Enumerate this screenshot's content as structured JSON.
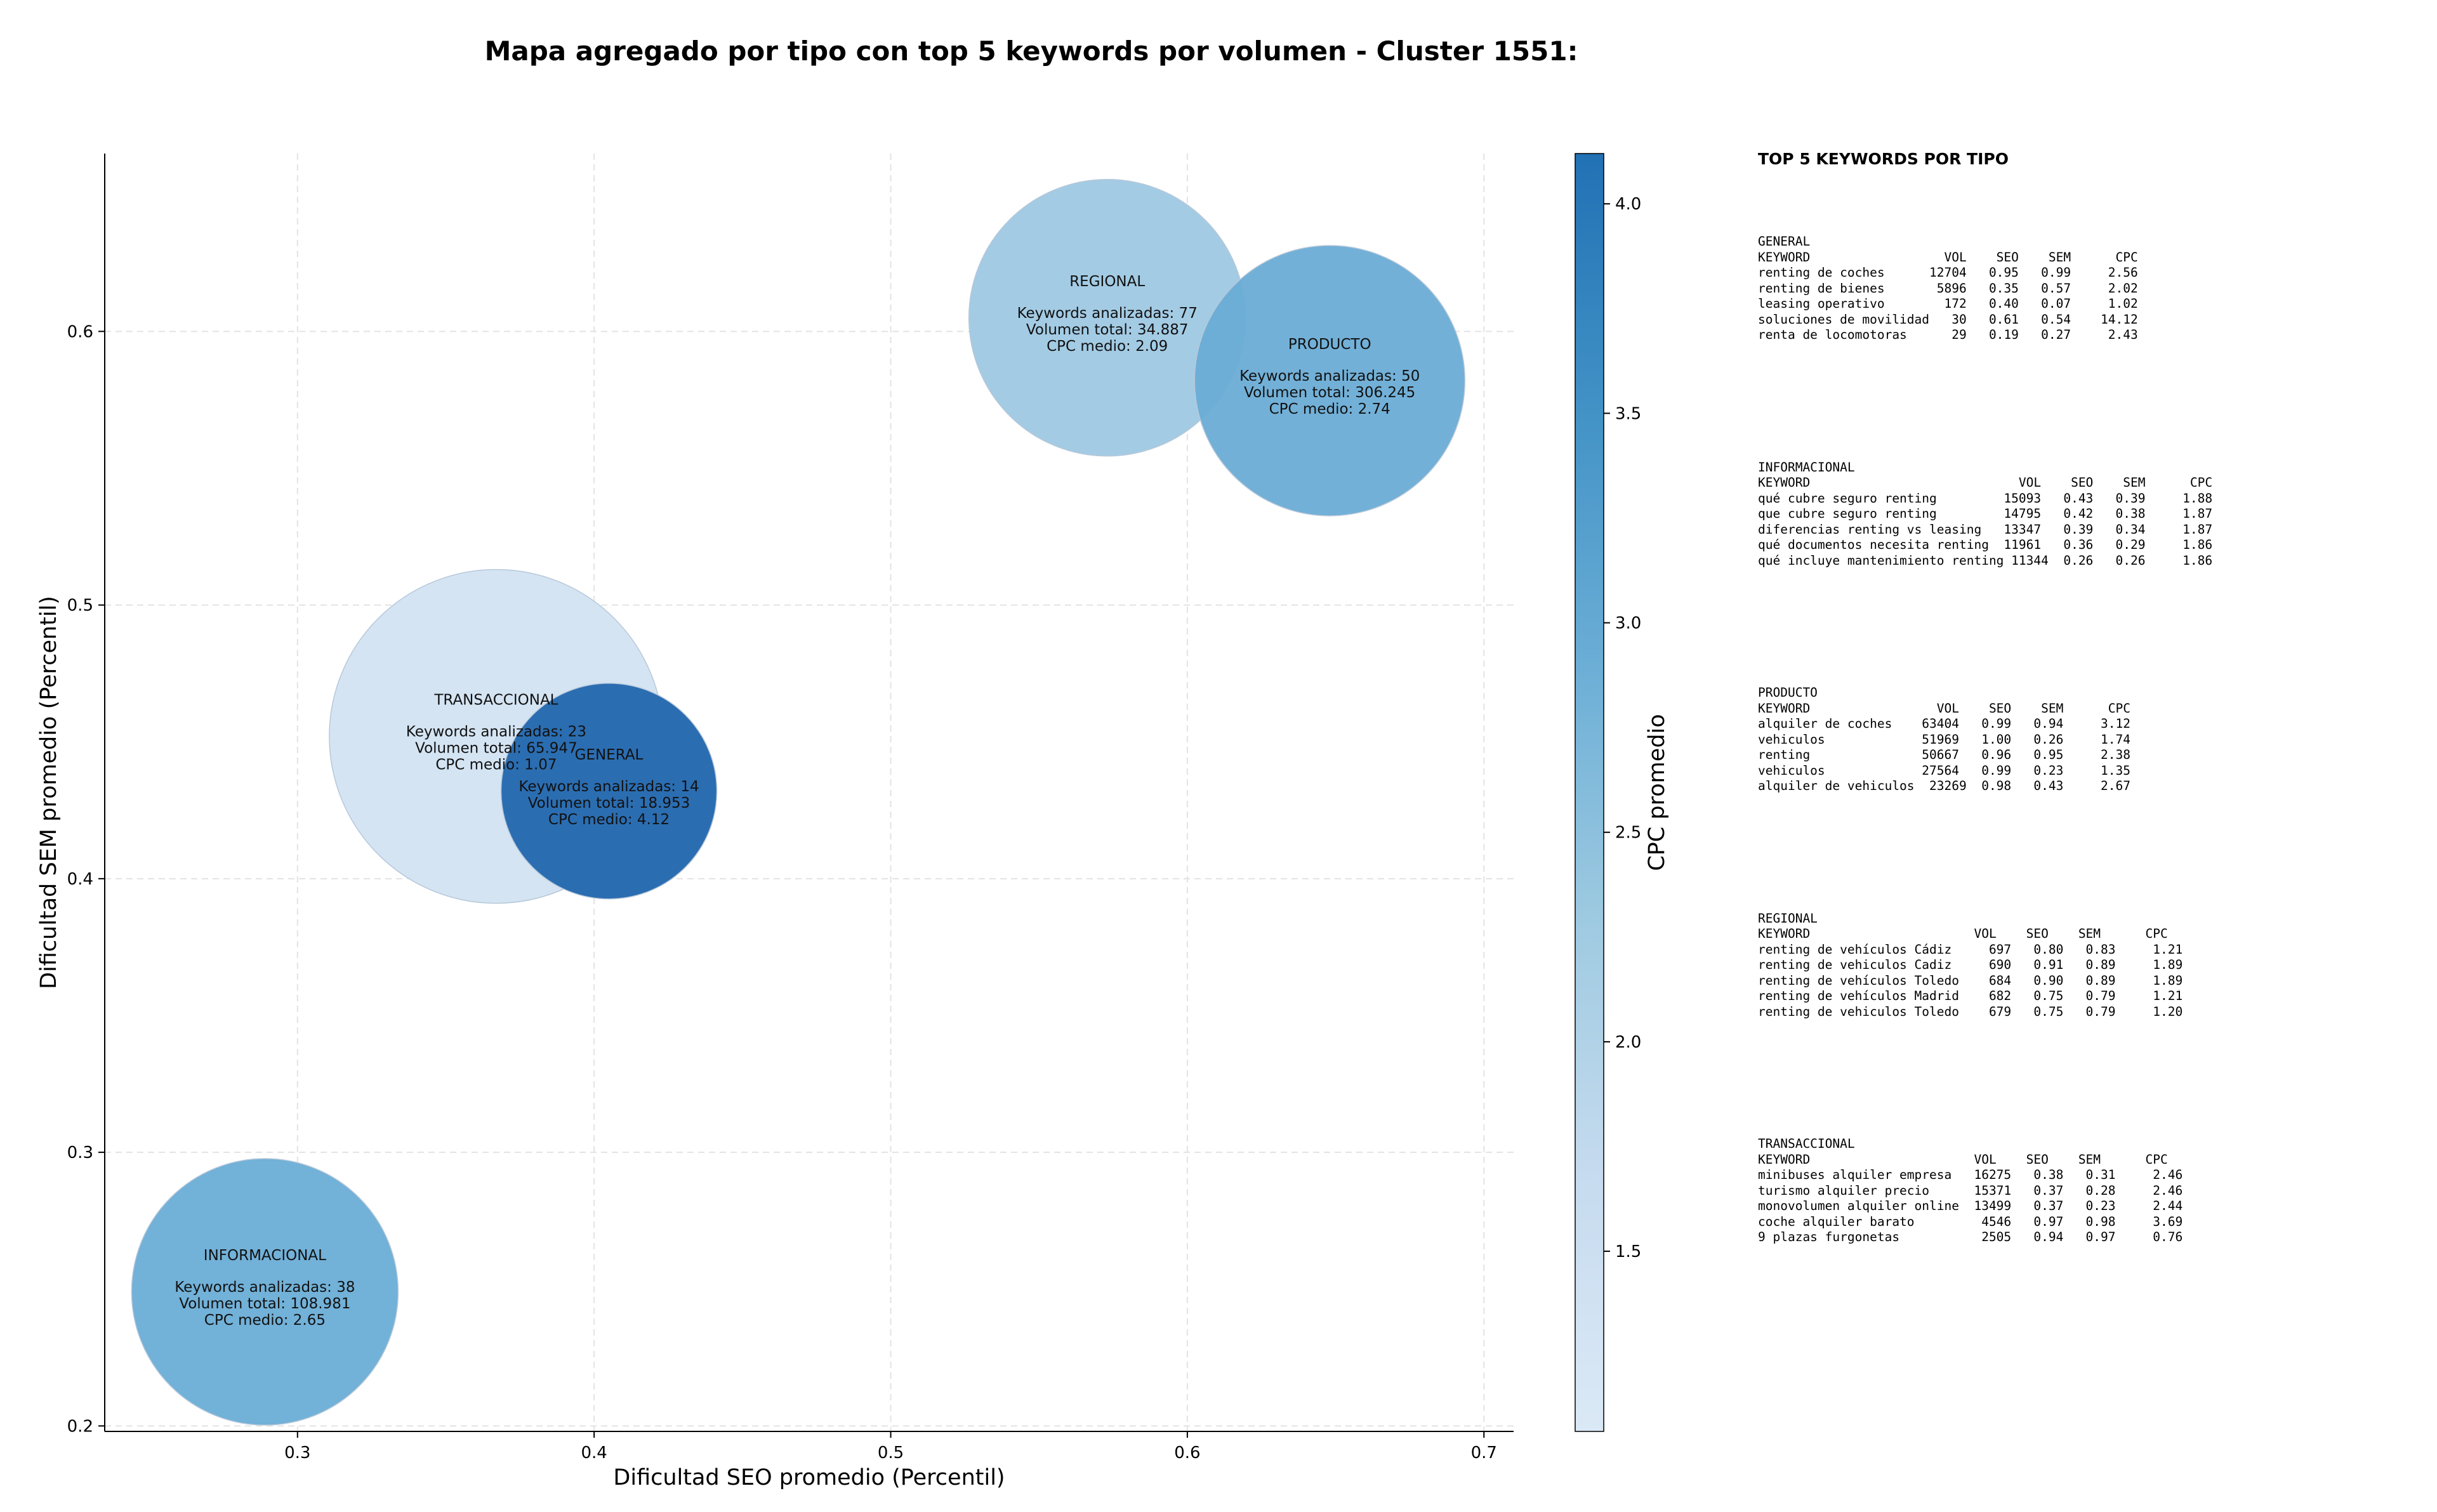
{
  "chart_data": {
    "type": "scatter",
    "title": "Mapa agregado por tipo con top 5 keywords por volumen - Cluster 1551:",
    "xlabel": "Dificultad SEO promedio (Percentil)",
    "ylabel": "Dificultad SEM promedio (Percentil)",
    "xlim": [
      0.235,
      0.71
    ],
    "ylim": [
      0.198,
      0.665
    ],
    "xticks": [
      0.3,
      0.4,
      0.5,
      0.6,
      0.7
    ],
    "yticks": [
      0.2,
      0.3,
      0.4,
      0.5,
      0.6
    ],
    "grid": true,
    "colorbar": {
      "label": "CPC promedio",
      "min": 1.07,
      "max": 4.12,
      "ticks": [
        1.5,
        2.0,
        2.5,
        3.0,
        3.5,
        4.0
      ],
      "colormap": [
        "#dbe9f6",
        "#c6dbef",
        "#9ecae1",
        "#6baed6",
        "#4292c6",
        "#2171b5"
      ]
    },
    "points": [
      {
        "name": "REGIONAL",
        "x": 0.573,
        "y": 0.605,
        "keywords_label": "Keywords analizadas: 77",
        "volume_label": "Volumen total: 34.887",
        "cpc_label": "CPC medio: 2.09",
        "keywords": 77,
        "volume": 34887,
        "cpc": 2.09,
        "color": "#a3cbe4",
        "alpha": 1.0
      },
      {
        "name": "PRODUCTO",
        "x": 0.648,
        "y": 0.582,
        "keywords_label": "Keywords analizadas: 50",
        "volume_label": "Volumen total: 306.245",
        "cpc_label": "CPC medio: 2.74",
        "keywords": 50,
        "volume": 306245,
        "cpc": 2.74,
        "color": "#6aacd5",
        "alpha": 0.95
      },
      {
        "name": "TRANSACCIONAL",
        "x": 0.367,
        "y": 0.452,
        "keywords_label": "Keywords analizadas: 23",
        "volume_label": "Volumen total: 65.947",
        "cpc_label": "CPC medio: 1.07",
        "keywords": 23,
        "volume": 65947,
        "cpc": 1.07,
        "color": "#d4e4f3",
        "alpha": 1.0
      },
      {
        "name": "GENERAL",
        "x": 0.405,
        "y": 0.432,
        "keywords_label": "Keywords analizadas: 14",
        "volume_label": "Volumen total: 18.953",
        "cpc_label": "CPC medio: 4.12",
        "keywords": 14,
        "volume": 18953,
        "cpc": 4.12,
        "color": "#2b6db1",
        "alpha": 1.0
      },
      {
        "name": "INFORMACIONAL",
        "x": 0.289,
        "y": 0.249,
        "keywords_label": "Keywords analizadas: 38",
        "volume_label": "Volumen total: 108.981",
        "cpc_label": "CPC medio: 2.65",
        "keywords": 38,
        "volume": 108981,
        "cpc": 2.65,
        "color": "#72b1d8",
        "alpha": 1.0
      }
    ]
  },
  "side_panel": {
    "title": "TOP 5 KEYWORDS POR TIPO",
    "sections": [
      {
        "name": "GENERAL",
        "text": "GENERAL\nKEYWORD                  VOL    SEO    SEM      CPC\nrenting de coches      12704   0.95   0.99     2.56\nrenting de bienes       5896   0.35   0.57     2.02\nleasing operativo        172   0.40   0.07     1.02\nsoluciones de movilidad   30   0.61   0.54    14.12\nrenta de locomotoras      29   0.19   0.27     2.43"
      },
      {
        "name": "INFORMACIONAL",
        "text": "INFORMACIONAL\nKEYWORD                            VOL    SEO    SEM      CPC\nqué cubre seguro renting         15093   0.43   0.39     1.88\nque cubre seguro renting         14795   0.42   0.38     1.87\ndiferencias renting vs leasing   13347   0.39   0.34     1.87\nqué documentos necesita renting  11961   0.36   0.29     1.86\nqué incluye mantenimiento renting 11344  0.26   0.26     1.86"
      },
      {
        "name": "PRODUCTO",
        "text": "PRODUCTO\nKEYWORD                 VOL    SEO    SEM      CPC\nalquiler de coches    63404   0.99   0.94     3.12\nvehiculos             51969   1.00   0.26     1.74\nrenting               50667   0.96   0.95     2.38\nvehiculos             27564   0.99   0.23     1.35\nalquiler de vehiculos  23269  0.98   0.43     2.67"
      },
      {
        "name": "REGIONAL",
        "text": "REGIONAL\nKEYWORD                      VOL    SEO    SEM      CPC\nrenting de vehículos Cádiz     697   0.80   0.83     1.21\nrenting de vehiculos Cadiz     690   0.91   0.89     1.89\nrenting de vehículos Toledo    684   0.90   0.89     1.89\nrenting de vehículos Madrid    682   0.75   0.79     1.21\nrenting de vehiculos Toledo    679   0.75   0.79     1.20"
      },
      {
        "name": "TRANSACCIONAL",
        "text": "TRANSACCIONAL\nKEYWORD                      VOL    SEO    SEM      CPC\nminibuses alquiler empresa   16275   0.38   0.31     2.46\nturismo alquiler precio      15371   0.37   0.28     2.46\nmonovolumen alquiler online  13499   0.37   0.23     2.44\ncoche alquiler barato         4546   0.97   0.98     3.69\n9 plazas furgonetas           2505   0.94   0.97     0.76"
      }
    ]
  }
}
